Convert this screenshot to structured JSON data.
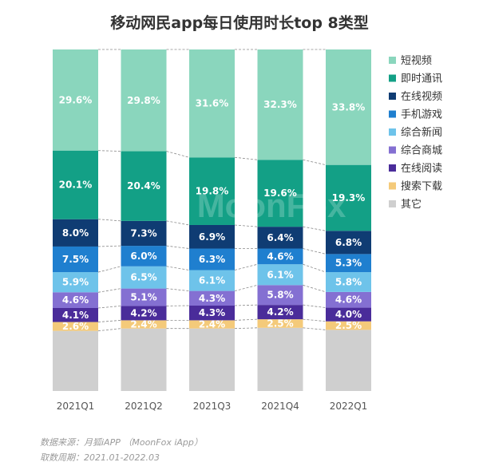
{
  "title": "移动网民app每日使用时长top 8类型",
  "source_line": "数据来源：月狐iAPP （MoonFox iApp）",
  "period_line": "取数周期：2021.01-2022.03",
  "watermark": "MoonFox",
  "chart_data": {
    "type": "bar",
    "stacked": true,
    "percent_stacked": true,
    "categories": [
      "2021Q1",
      "2021Q2",
      "2021Q3",
      "2021Q4",
      "2022Q1"
    ],
    "series": [
      {
        "name": "其它",
        "color": "#cfcfcf",
        "values": [
          null,
          null,
          null,
          null,
          null
        ],
        "labels": [
          "",
          "",
          "",
          "",
          ""
        ]
      },
      {
        "name": "搜索下载",
        "color": "#f4ca7a",
        "values": [
          2.6,
          2.4,
          2.4,
          2.5,
          2.5
        ],
        "labels": [
          "2.6%",
          "2.4%",
          "2.4%",
          "2.5%",
          "2.5%"
        ]
      },
      {
        "name": "在线阅读",
        "color": "#4a2c9a",
        "values": [
          4.1,
          4.2,
          4.3,
          4.2,
          4.0
        ],
        "labels": [
          "4.1%",
          "4.2%",
          "4.3%",
          "4.2%",
          "4.0%"
        ]
      },
      {
        "name": "综合商城",
        "color": "#8470d2",
        "values": [
          4.6,
          5.1,
          4.3,
          5.8,
          4.6
        ],
        "labels": [
          "4.6%",
          "5.1%",
          "4.3%",
          "5.8%",
          "4.6%"
        ]
      },
      {
        "name": "综合新闻",
        "color": "#6ec3ea",
        "values": [
          5.9,
          6.5,
          6.1,
          6.1,
          5.8
        ],
        "labels": [
          "5.9%",
          "6.5%",
          "6.1%",
          "6.1%",
          "5.8%"
        ]
      },
      {
        "name": "手机游戏",
        "color": "#1f7fcf",
        "values": [
          7.5,
          6.0,
          6.3,
          4.6,
          5.3
        ],
        "labels": [
          "7.5%",
          "6.0%",
          "6.3%",
          "4.6%",
          "5.3%"
        ]
      },
      {
        "name": "在线视频",
        "color": "#0f3c73",
        "values": [
          8.0,
          7.3,
          6.9,
          6.4,
          6.8
        ],
        "labels": [
          "8.0%",
          "7.3%",
          "6.9%",
          "6.4%",
          "6.8%"
        ]
      },
      {
        "name": "即时通讯",
        "color": "#13a086",
        "values": [
          20.1,
          20.4,
          19.8,
          19.6,
          19.3
        ],
        "labels": [
          "20.1%",
          "20.4%",
          "19.8%",
          "19.6%",
          "19.3%"
        ]
      },
      {
        "name": "短视频",
        "color": "#8ad6bd",
        "values": [
          29.6,
          29.8,
          31.6,
          32.3,
          33.8
        ],
        "labels": [
          "29.6%",
          "29.8%",
          "31.6%",
          "32.3%",
          "33.8%"
        ]
      }
    ],
    "legend": {
      "position": "right",
      "items": [
        {
          "label": "短视频",
          "color": "#8ad6bd"
        },
        {
          "label": "即时通讯",
          "color": "#13a086"
        },
        {
          "label": "在线视频",
          "color": "#0f3c73"
        },
        {
          "label": "手机游戏",
          "color": "#1f7fcf"
        },
        {
          "label": "综合新闻",
          "color": "#6ec3ea"
        },
        {
          "label": "综合商城",
          "color": "#8470d2"
        },
        {
          "label": "在线阅读",
          "color": "#4a2c9a"
        },
        {
          "label": "搜索下载",
          "color": "#f4ca7a"
        },
        {
          "label": "其它",
          "color": "#cfcfcf"
        }
      ]
    },
    "connector_lines": "dashed",
    "grid": false
  }
}
